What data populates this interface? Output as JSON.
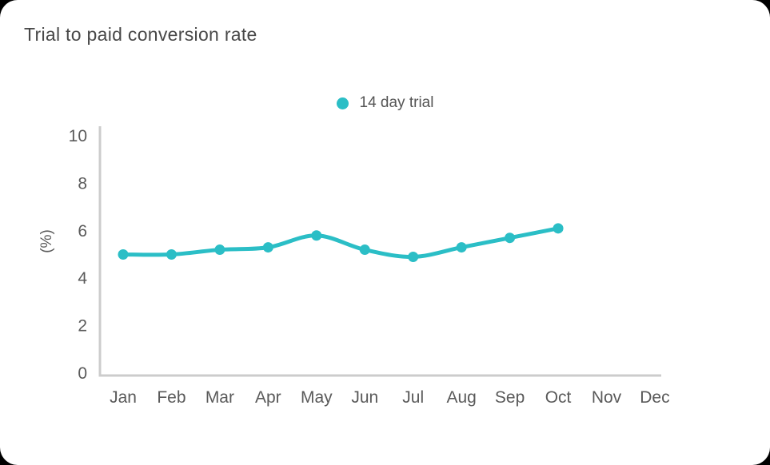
{
  "card": {
    "title": "Trial to paid conversion rate"
  },
  "legend": {
    "items": [
      {
        "label": "14 day trial",
        "color": "#2bbec6"
      }
    ]
  },
  "chart_data": {
    "type": "line",
    "title": "Trial to paid conversion rate",
    "categories": [
      "Jan",
      "Feb",
      "Mar",
      "Apr",
      "May",
      "Jun",
      "Jul",
      "Aug",
      "Sep",
      "Oct",
      "Nov",
      "Dec"
    ],
    "series": [
      {
        "name": "14 day trial",
        "color": "#2bbec6",
        "values": [
          5.0,
          5.0,
          5.2,
          5.3,
          5.8,
          5.2,
          4.9,
          5.3,
          5.7,
          6.1,
          null,
          null
        ]
      }
    ],
    "xlabel": "",
    "ylabel": "(%)",
    "ylim": [
      0,
      10
    ],
    "yticks": [
      0,
      2,
      4,
      6,
      8,
      10
    ],
    "grid": false,
    "legend_position": "top",
    "line_smooth": true,
    "colors": {
      "axis_line": "#cccccc",
      "tick_label": "#5a5a5a",
      "title": "#484848"
    }
  }
}
